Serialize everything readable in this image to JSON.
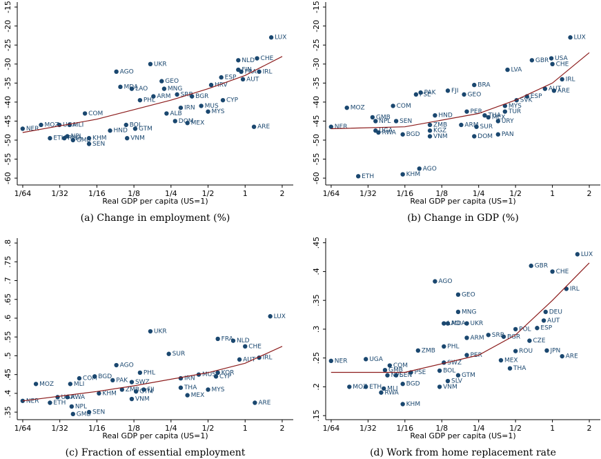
{
  "chart_data": [
    {
      "type": "scatter",
      "caption": "(a) Change in employment (%)",
      "xlabel": "Real GDP per capita (US=1)",
      "xscale": "log",
      "color": "#1a476f",
      "fit_color": "#8b1a1a",
      "xlim": [
        0.0141,
        2.46
      ],
      "ylim": [
        -61.8,
        -13.7
      ],
      "xticks": [
        {
          "value": 0.015625,
          "label": "1/64"
        },
        {
          "value": 0.03125,
          "label": "1/32"
        },
        {
          "value": 0.0625,
          "label": "1/16"
        },
        {
          "value": 0.125,
          "label": "1/8"
        },
        {
          "value": 0.25,
          "label": "1/4"
        },
        {
          "value": 0.5,
          "label": "1/2"
        },
        1,
        2
      ],
      "yticks": [
        -15,
        -20,
        -25,
        -30,
        -35,
        -40,
        -45,
        -50,
        -55,
        -60
      ],
      "labels": [
        "NER",
        "MOZ",
        "UGA",
        "MLI",
        "RWA",
        "NPL",
        "ETH",
        "GMB",
        "KHM",
        "SEN",
        "COM",
        "HND",
        "AGO",
        "MDA",
        "LAO",
        "UKR",
        "PHL",
        "GEO",
        "MNG",
        "ARM",
        "VNM",
        "GTM",
        "BOL",
        "BGR",
        "SRB",
        "DOM",
        "MEX",
        "ALB",
        "IRN",
        "MUS",
        "MYS",
        "CYP",
        "AUT",
        "IRL",
        "CHE",
        "LUX",
        "ARE",
        "NLD",
        "FIN",
        "FRA",
        "ESP",
        "HRV"
      ],
      "x": [
        0.0156,
        0.022,
        0.031,
        0.0375,
        0.034,
        0.036,
        0.026,
        0.04,
        0.054,
        0.054,
        0.05,
        0.08,
        0.09,
        0.097,
        0.12,
        0.17,
        0.14,
        0.21,
        0.22,
        0.18,
        0.11,
        0.128,
        0.108,
        0.37,
        0.28,
        0.27,
        0.34,
        0.23,
        0.3,
        0.44,
        0.5,
        0.66,
        0.96,
        1.3,
        1.25,
        1.63,
        1.18,
        0.88,
        0.88,
        0.93,
        0.64,
        0.53
      ],
      "y": [
        -47,
        -46,
        -46,
        -46,
        -49.5,
        -49,
        -49.5,
        -50,
        -49.5,
        -51,
        -43,
        -47.5,
        -32,
        -36,
        -36.5,
        -30,
        -39.5,
        -34.5,
        -36.5,
        -38.5,
        -49.5,
        -47,
        -46,
        -38.5,
        -38,
        -45,
        -45.5,
        -43,
        -41.5,
        -41,
        -42.5,
        -39.5,
        -34,
        -32,
        -28.5,
        -23,
        -46.5,
        -29,
        -31.5,
        -32,
        -33.5,
        -35.5
      ],
      "fit": {
        "x": [
          0.0156,
          0.0625,
          0.25,
          0.5,
          1,
          2
        ],
        "y": [
          -48,
          -44.5,
          -39.5,
          -36.5,
          -33,
          -28
        ]
      }
    },
    {
      "type": "scatter",
      "caption": "(b) Change in GDP (%)",
      "xlabel": "Real GDP per capita (US=1)",
      "xscale": "log",
      "color": "#1a476f",
      "fit_color": "#8b1a1a",
      "xlim": [
        0.0141,
        2.46
      ],
      "ylim": [
        -61.8,
        -13.7
      ],
      "xticks": [
        {
          "value": 0.015625,
          "label": "1/64"
        },
        {
          "value": 0.03125,
          "label": "1/32"
        },
        {
          "value": 0.0625,
          "label": "1/16"
        },
        {
          "value": 0.125,
          "label": "1/8"
        },
        {
          "value": 0.25,
          "label": "1/4"
        },
        {
          "value": 0.5,
          "label": "1/2"
        },
        1,
        2
      ],
      "yticks": [
        -15,
        -20,
        -25,
        -30,
        -35,
        -40,
        -45,
        -50,
        -55,
        -60
      ],
      "labels": [
        "NER",
        "MOZ",
        "UGA",
        "RWA",
        "ETH",
        "KHM",
        "AGO",
        "COM",
        "GMB",
        "NPL",
        "SEN",
        "BGD",
        "ZMB",
        "KGZ",
        "VNM",
        "PAK",
        "PSE",
        "FJI",
        "HND",
        "BRA",
        "GEO",
        "PER",
        "ARM",
        "SUR",
        "DOM",
        "PAN",
        "THA",
        "MEX",
        "URY",
        "MYS",
        "TUR",
        "ESP",
        "SVK",
        "LVA",
        "GBR",
        "USA",
        "CHE",
        "IRL",
        "AUT",
        "ARE",
        "LUX"
      ],
      "x": [
        0.0156,
        0.021,
        0.036,
        0.038,
        0.026,
        0.06,
        0.082,
        0.05,
        0.034,
        0.036,
        0.053,
        0.06,
        0.1,
        0.1,
        0.1,
        0.084,
        0.077,
        0.14,
        0.11,
        0.23,
        0.19,
        0.2,
        0.18,
        0.24,
        0.23,
        0.36,
        0.28,
        0.3,
        0.36,
        0.41,
        0.41,
        0.62,
        0.51,
        0.43,
        0.68,
        0.98,
        1.0,
        1.2,
        0.87,
        1.03,
        1.4
      ],
      "y": [
        -46.5,
        -41.5,
        -47.5,
        -48,
        -59.5,
        -59,
        -57.5,
        -41,
        -44,
        -45,
        -45,
        -48.5,
        -46,
        -47.5,
        -49,
        -37.5,
        -38,
        -37,
        -43.5,
        -35.5,
        -38,
        -42.5,
        -46,
        -46.5,
        -49,
        -48.5,
        -43.5,
        -44,
        -45,
        -41,
        -42.5,
        -38.5,
        -39.5,
        -31.5,
        -29,
        -28.5,
        -30,
        -34,
        -36.5,
        -37,
        -23
      ],
      "fit": {
        "x": [
          0.0156,
          0.0625,
          0.25,
          0.5,
          1,
          2
        ],
        "y": [
          -47,
          -46.5,
          -43,
          -39.5,
          -35,
          -27
        ]
      }
    },
    {
      "type": "scatter",
      "caption": "(c) Fraction of essential employment",
      "xlabel": "Real GDP per capita (US=1)",
      "xscale": "log",
      "color": "#1a476f",
      "fit_color": "#8b1a1a",
      "xlim": [
        0.0141,
        2.46
      ],
      "ylim": [
        0.33,
        0.813
      ],
      "xticks": [
        {
          "value": 0.015625,
          "label": "1/64"
        },
        {
          "value": 0.03125,
          "label": "1/32"
        },
        {
          "value": 0.0625,
          "label": "1/16"
        },
        {
          "value": 0.125,
          "label": "1/8"
        },
        {
          "value": 0.25,
          "label": "1/4"
        },
        {
          "value": 0.5,
          "label": "1/2"
        },
        1,
        2
      ],
      "yticks": [
        {
          "value": 0.35,
          "label": ".35"
        },
        {
          "value": 0.4,
          "label": ".4"
        },
        {
          "value": 0.45,
          "label": ".45"
        },
        {
          "value": 0.5,
          "label": ".5"
        },
        {
          "value": 0.55,
          "label": ".55"
        },
        {
          "value": 0.6,
          "label": ".6"
        },
        {
          "value": 0.65,
          "label": ".65"
        },
        {
          "value": 0.7,
          "label": ".7"
        },
        {
          "value": 0.75,
          "label": ".75"
        },
        {
          "value": 0.8,
          "label": ".8"
        }
      ],
      "labels": [
        "NER",
        "MOZ",
        "ETH",
        "RWA",
        "UGA",
        "MLI",
        "NPL",
        "GMB",
        "SEN",
        "COM",
        "BGD",
        "KHM",
        "PAK",
        "ZMB",
        "FJI",
        "VNM",
        "GTM",
        "PHL",
        "UKR",
        "SUR",
        "AGO",
        "SWZ",
        "THA",
        "MEX",
        "MYS",
        "CYP",
        "KOR",
        "FRA",
        "NLD",
        "CHE",
        "AUT",
        "IRL",
        "LUX",
        "ARE",
        "MUS",
        "IRN"
      ],
      "x": [
        0.0156,
        0.02,
        0.026,
        0.036,
        0.03,
        0.038,
        0.039,
        0.04,
        0.054,
        0.045,
        0.06,
        0.065,
        0.084,
        0.1,
        0.15,
        0.12,
        0.13,
        0.14,
        0.17,
        0.24,
        0.09,
        0.12,
        0.3,
        0.34,
        0.5,
        0.58,
        0.6,
        0.6,
        0.8,
        1.0,
        0.9,
        1.3,
        1.6,
        1.2,
        0.42,
        0.3
      ],
      "y": [
        0.38,
        0.425,
        0.375,
        0.39,
        0.39,
        0.425,
        0.365,
        0.345,
        0.35,
        0.44,
        0.445,
        0.4,
        0.435,
        0.41,
        0.41,
        0.385,
        0.405,
        0.455,
        0.565,
        0.505,
        0.475,
        0.43,
        0.415,
        0.395,
        0.41,
        0.445,
        0.455,
        0.545,
        0.54,
        0.525,
        0.49,
        0.495,
        0.605,
        0.375,
        0.45,
        0.44
      ],
      "fit": {
        "x": [
          0.0156,
          0.0625,
          0.125,
          0.5,
          1,
          2
        ],
        "y": [
          0.38,
          0.405,
          0.42,
          0.455,
          0.48,
          0.525
        ]
      }
    },
    {
      "type": "scatter",
      "caption": "(d) Work from home replacement rate",
      "xlabel": "Real GDP per capita (US=1)",
      "xscale": "log",
      "color": "#1a476f",
      "fit_color": "#8b1a1a",
      "xlim": [
        0.0141,
        2.46
      ],
      "ylim": [
        0.143,
        0.458
      ],
      "xticks": [
        {
          "value": 0.015625,
          "label": "1/64"
        },
        {
          "value": 0.03125,
          "label": "1/32"
        },
        {
          "value": 0.0625,
          "label": "1/16"
        },
        {
          "value": 0.125,
          "label": "1/8"
        },
        {
          "value": 0.25,
          "label": "1/4"
        },
        {
          "value": 0.5,
          "label": "1/2"
        },
        1,
        2
      ],
      "yticks": [
        {
          "value": 0.15,
          "label": ".15"
        },
        {
          "value": 0.2,
          "label": ".2"
        },
        {
          "value": 0.25,
          "label": ".25"
        },
        {
          "value": 0.3,
          "label": ".3"
        },
        {
          "value": 0.35,
          "label": ".35"
        },
        {
          "value": 0.4,
          "label": ".4"
        },
        {
          "value": 0.45,
          "label": ".45"
        }
      ],
      "labels": [
        "NER",
        "UGA",
        "MOZ",
        "ETH",
        "RWA",
        "MLI",
        "KHM",
        "NPL",
        "SEN",
        "GMB",
        "COM",
        "BGD",
        "PSE",
        "ZMB",
        "AGO",
        "GEO",
        "MNG",
        "UKR",
        "MDA",
        "LAO",
        "PHL",
        "ARM",
        "GTM",
        "SLV",
        "VNM",
        "BOL",
        "SWZ",
        "PER",
        "SRB",
        "BGR",
        "MEX",
        "THA",
        "ROU",
        "JPN",
        "ARE",
        "AUT",
        "DEU",
        "IRL",
        "CHE",
        "GBR",
        "LUX",
        "ESP",
        "CZE",
        "POL"
      ],
      "x": [
        0.0156,
        0.03,
        0.022,
        0.03,
        0.04,
        0.042,
        0.06,
        0.045,
        0.053,
        0.043,
        0.047,
        0.06,
        0.07,
        0.08,
        0.11,
        0.17,
        0.17,
        0.2,
        0.14,
        0.13,
        0.13,
        0.2,
        0.17,
        0.14,
        0.12,
        0.12,
        0.13,
        0.2,
        0.3,
        0.4,
        0.38,
        0.45,
        0.5,
        0.9,
        1.2,
        0.85,
        0.88,
        1.3,
        1.0,
        0.67,
        1.6,
        0.75,
        0.65,
        0.5
      ],
      "y": [
        0.245,
        0.248,
        0.2,
        0.2,
        0.19,
        0.197,
        0.17,
        0.22,
        0.22,
        0.229,
        0.237,
        0.205,
        0.225,
        0.263,
        0.383,
        0.36,
        0.33,
        0.31,
        0.31,
        0.31,
        0.27,
        0.285,
        0.22,
        0.21,
        0.2,
        0.228,
        0.242,
        0.255,
        0.29,
        0.287,
        0.246,
        0.232,
        0.262,
        0.263,
        0.253,
        0.315,
        0.33,
        0.37,
        0.4,
        0.41,
        0.43,
        0.302,
        0.28,
        0.3
      ],
      "fit": {
        "x": [
          0.0156,
          0.0625,
          0.25,
          0.5,
          1,
          2
        ],
        "y": [
          0.225,
          0.225,
          0.255,
          0.29,
          0.35,
          0.415
        ]
      }
    }
  ]
}
